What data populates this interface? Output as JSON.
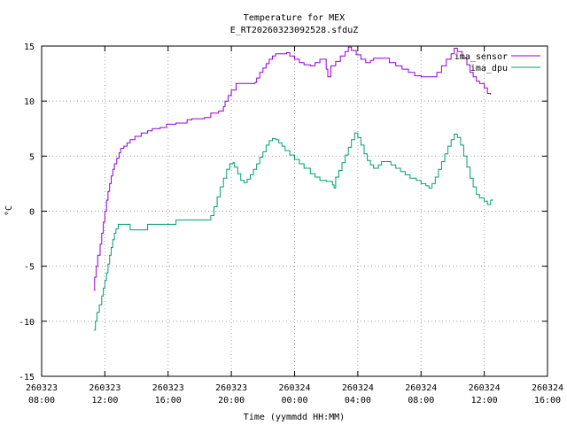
{
  "chart_data": {
    "type": "line",
    "title": "Temperature for MEX",
    "subtitle": "E_RT20260323092528.sfduZ",
    "xlabel": "Time (yymmdd HH:MM)",
    "ylabel": "°C",
    "ylim": [
      -15,
      15
    ],
    "xlim_hours": [
      8,
      40
    ],
    "grid": true,
    "legend_position": "top-right",
    "yticks": [
      -15,
      -10,
      -5,
      0,
      5,
      10,
      15
    ],
    "xticks": [
      {
        "h": 8,
        "date": "260323",
        "time": "08:00"
      },
      {
        "h": 12,
        "date": "260323",
        "time": "12:00"
      },
      {
        "h": 16,
        "date": "260323",
        "time": "16:00"
      },
      {
        "h": 20,
        "date": "260323",
        "time": "20:00"
      },
      {
        "h": 24,
        "date": "260324",
        "time": "00:00"
      },
      {
        "h": 28,
        "date": "260324",
        "time": "04:00"
      },
      {
        "h": 32,
        "date": "260324",
        "time": "08:00"
      },
      {
        "h": 36,
        "date": "260324",
        "time": "12:00"
      },
      {
        "h": 40,
        "date": "260324",
        "time": "16:00"
      }
    ],
    "series": [
      {
        "name": "ima_sensor",
        "color": "#9400d3",
        "points": [
          [
            11.3,
            -7.2
          ],
          [
            11.35,
            -6.0
          ],
          [
            11.45,
            -5.0
          ],
          [
            11.55,
            -4.0
          ],
          [
            11.7,
            -3.0
          ],
          [
            11.8,
            -2.0
          ],
          [
            11.9,
            -1.0
          ],
          [
            12.0,
            0.0
          ],
          [
            12.1,
            1.0
          ],
          [
            12.2,
            1.8
          ],
          [
            12.3,
            2.5
          ],
          [
            12.4,
            3.2
          ],
          [
            12.5,
            3.8
          ],
          [
            12.6,
            4.3
          ],
          [
            12.75,
            4.8
          ],
          [
            12.9,
            5.3
          ],
          [
            13.0,
            5.7
          ],
          [
            13.2,
            5.9
          ],
          [
            13.4,
            6.2
          ],
          [
            13.6,
            6.5
          ],
          [
            13.9,
            6.8
          ],
          [
            14.3,
            7.1
          ],
          [
            14.7,
            7.3
          ],
          [
            15.0,
            7.5
          ],
          [
            15.5,
            7.6
          ],
          [
            15.9,
            7.9
          ],
          [
            16.5,
            8.0
          ],
          [
            17.2,
            8.3
          ],
          [
            17.5,
            8.4
          ],
          [
            18.3,
            8.5
          ],
          [
            18.7,
            8.9
          ],
          [
            19.2,
            9.1
          ],
          [
            19.5,
            9.5
          ],
          [
            19.6,
            10.0
          ],
          [
            19.8,
            10.5
          ],
          [
            20.0,
            11.0
          ],
          [
            20.3,
            11.6
          ],
          [
            21.0,
            11.6
          ],
          [
            21.5,
            11.7
          ],
          [
            21.6,
            12.1
          ],
          [
            21.8,
            12.6
          ],
          [
            22.0,
            13.0
          ],
          [
            22.2,
            13.4
          ],
          [
            22.4,
            13.8
          ],
          [
            22.6,
            14.1
          ],
          [
            22.8,
            14.3
          ],
          [
            23.5,
            14.4
          ],
          [
            23.7,
            14.1
          ],
          [
            24.0,
            13.8
          ],
          [
            24.3,
            13.5
          ],
          [
            24.6,
            13.3
          ],
          [
            25.0,
            13.2
          ],
          [
            25.3,
            13.5
          ],
          [
            25.6,
            13.8
          ],
          [
            26.0,
            12.9
          ],
          [
            26.1,
            12.2
          ],
          [
            26.3,
            13.2
          ],
          [
            26.6,
            13.6
          ],
          [
            26.9,
            14.1
          ],
          [
            27.2,
            14.5
          ],
          [
            27.4,
            14.9
          ],
          [
            27.6,
            14.6
          ],
          [
            27.9,
            14.2
          ],
          [
            28.2,
            13.8
          ],
          [
            28.5,
            13.5
          ],
          [
            28.8,
            13.7
          ],
          [
            29.0,
            13.9
          ],
          [
            29.6,
            13.9
          ],
          [
            30.0,
            13.5
          ],
          [
            30.4,
            13.2
          ],
          [
            30.8,
            12.9
          ],
          [
            31.2,
            12.6
          ],
          [
            31.6,
            12.3
          ],
          [
            32.0,
            12.2
          ],
          [
            32.8,
            12.2
          ],
          [
            33.0,
            12.6
          ],
          [
            33.3,
            13.2
          ],
          [
            33.6,
            13.8
          ],
          [
            33.9,
            14.3
          ],
          [
            34.1,
            14.8
          ],
          [
            34.3,
            14.5
          ],
          [
            34.6,
            13.9
          ],
          [
            34.9,
            13.3
          ],
          [
            35.1,
            12.6
          ],
          [
            35.3,
            12.2
          ],
          [
            35.5,
            11.8
          ],
          [
            35.7,
            11.6
          ],
          [
            36.0,
            11.2
          ],
          [
            36.2,
            10.7
          ],
          [
            36.4,
            10.6
          ]
        ]
      },
      {
        "name": "ima_dpu",
        "color": "#009e73",
        "points": [
          [
            11.3,
            -10.8
          ],
          [
            11.4,
            -10.0
          ],
          [
            11.5,
            -9.2
          ],
          [
            11.65,
            -8.5
          ],
          [
            11.8,
            -7.7
          ],
          [
            11.9,
            -7.0
          ],
          [
            12.0,
            -6.3
          ],
          [
            12.1,
            -5.6
          ],
          [
            12.2,
            -4.8
          ],
          [
            12.3,
            -4.0
          ],
          [
            12.4,
            -3.3
          ],
          [
            12.5,
            -2.6
          ],
          [
            12.6,
            -2.0
          ],
          [
            12.7,
            -1.6
          ],
          [
            12.85,
            -1.2
          ],
          [
            13.5,
            -1.2
          ],
          [
            13.6,
            -1.7
          ],
          [
            14.0,
            -1.7
          ],
          [
            14.5,
            -1.7
          ],
          [
            14.7,
            -1.2
          ],
          [
            15.5,
            -1.2
          ],
          [
            16.4,
            -1.2
          ],
          [
            16.5,
            -0.8
          ],
          [
            17.5,
            -0.8
          ],
          [
            18.6,
            -0.8
          ],
          [
            18.7,
            -0.4
          ],
          [
            18.9,
            0.4
          ],
          [
            19.1,
            1.3
          ],
          [
            19.3,
            2.2
          ],
          [
            19.5,
            3.0
          ],
          [
            19.7,
            3.8
          ],
          [
            19.9,
            4.3
          ],
          [
            20.1,
            4.4
          ],
          [
            20.2,
            4.0
          ],
          [
            20.4,
            3.4
          ],
          [
            20.6,
            2.8
          ],
          [
            20.8,
            2.6
          ],
          [
            21.0,
            2.9
          ],
          [
            21.2,
            3.3
          ],
          [
            21.4,
            3.8
          ],
          [
            21.6,
            4.3
          ],
          [
            21.8,
            4.9
          ],
          [
            22.0,
            5.4
          ],
          [
            22.2,
            6.0
          ],
          [
            22.4,
            6.4
          ],
          [
            22.6,
            6.6
          ],
          [
            22.8,
            6.5
          ],
          [
            23.0,
            6.2
          ],
          [
            23.2,
            5.9
          ],
          [
            23.4,
            5.5
          ],
          [
            23.7,
            5.1
          ],
          [
            24.0,
            4.7
          ],
          [
            24.3,
            4.3
          ],
          [
            24.6,
            3.9
          ],
          [
            25.0,
            3.4
          ],
          [
            25.3,
            3.1
          ],
          [
            25.6,
            2.8
          ],
          [
            26.0,
            2.7
          ],
          [
            26.4,
            2.4
          ],
          [
            26.5,
            2.1
          ],
          [
            26.6,
            3.1
          ],
          [
            26.8,
            3.7
          ],
          [
            27.0,
            4.4
          ],
          [
            27.2,
            5.1
          ],
          [
            27.4,
            5.8
          ],
          [
            27.6,
            6.5
          ],
          [
            27.8,
            7.1
          ],
          [
            28.0,
            6.7
          ],
          [
            28.2,
            6.0
          ],
          [
            28.4,
            5.2
          ],
          [
            28.6,
            4.6
          ],
          [
            28.8,
            4.2
          ],
          [
            29.0,
            3.9
          ],
          [
            29.3,
            4.2
          ],
          [
            29.5,
            4.5
          ],
          [
            29.9,
            4.5
          ],
          [
            30.1,
            4.2
          ],
          [
            30.4,
            3.9
          ],
          [
            30.7,
            3.6
          ],
          [
            31.0,
            3.3
          ],
          [
            31.3,
            3.0
          ],
          [
            31.7,
            2.8
          ],
          [
            32.0,
            2.5
          ],
          [
            32.3,
            2.3
          ],
          [
            32.5,
            2.1
          ],
          [
            32.7,
            2.5
          ],
          [
            32.9,
            3.1
          ],
          [
            33.1,
            3.8
          ],
          [
            33.3,
            4.5
          ],
          [
            33.5,
            5.2
          ],
          [
            33.7,
            5.9
          ],
          [
            33.9,
            6.5
          ],
          [
            34.1,
            7.0
          ],
          [
            34.3,
            6.7
          ],
          [
            34.5,
            6.0
          ],
          [
            34.7,
            5.0
          ],
          [
            34.9,
            4.0
          ],
          [
            35.1,
            3.0
          ],
          [
            35.3,
            2.2
          ],
          [
            35.5,
            1.5
          ],
          [
            35.7,
            1.2
          ],
          [
            36.0,
            0.9
          ],
          [
            36.2,
            0.6
          ],
          [
            36.4,
            1.0
          ],
          [
            36.5,
            1.1
          ]
        ]
      }
    ]
  }
}
